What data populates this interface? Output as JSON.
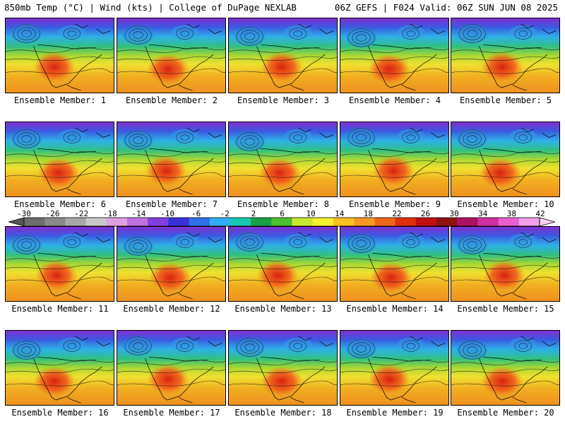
{
  "header": {
    "left": "850mb Temp (°C) | Wind (kts) | College of DuPage NEXLAB",
    "right": "06Z GEFS | F024 Valid: 06Z SUN JUN 08 2025"
  },
  "members": [
    "Ensemble Member: 1",
    "Ensemble Member: 2",
    "Ensemble Member: 3",
    "Ensemble Member: 4",
    "Ensemble Member: 5",
    "Ensemble Member: 6",
    "Ensemble Member: 7",
    "Ensemble Member: 8",
    "Ensemble Member: 9",
    "Ensemble Member: 10",
    "Ensemble Member: 11",
    "Ensemble Member: 12",
    "Ensemble Member: 13",
    "Ensemble Member: 14",
    "Ensemble Member: 15",
    "Ensemble Member: 16",
    "Ensemble Member: 17",
    "Ensemble Member: 18",
    "Ensemble Member: 19",
    "Ensemble Member: 20"
  ],
  "colorbar": {
    "labels": [
      "-30",
      "-26",
      "-22",
      "-18",
      "-14",
      "-10",
      "-6",
      "-2",
      "2",
      "6",
      "10",
      "14",
      "18",
      "22",
      "26",
      "30",
      "34",
      "38",
      "42"
    ],
    "colors": [
      "#6e6e6e",
      "#8a8a8a",
      "#a8a8a8",
      "#c8c8c8",
      "#e0a0e0",
      "#c070e0",
      "#8040e0",
      "#3a2fd8",
      "#2f6fe8",
      "#2fb0f0",
      "#18c8b0",
      "#18a048",
      "#50c030",
      "#c8e830",
      "#f8f030",
      "#f8c020",
      "#f89820",
      "#f06818",
      "#e03010",
      "#c01010",
      "#901010",
      "#b01060",
      "#d030a0",
      "#e860d0",
      "#f0a0e8"
    ]
  }
}
